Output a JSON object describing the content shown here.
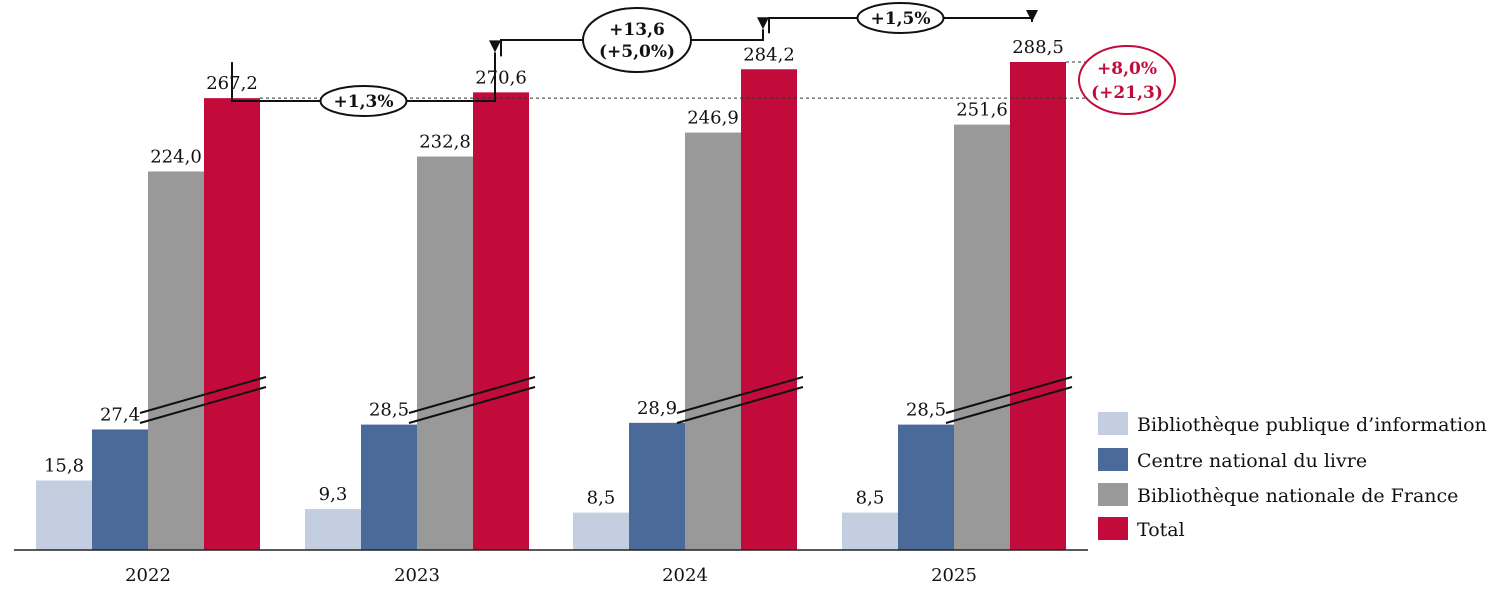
{
  "chart_data": {
    "type": "bar",
    "categories": [
      "2022",
      "2023",
      "2024",
      "2025"
    ],
    "series": [
      {
        "name": "Bibliothèque publique d’information",
        "color": "#c3cfe0",
        "values": [
          15.8,
          9.3,
          8.5,
          8.5
        ],
        "labels": [
          "15,8",
          "9,3",
          "8,5",
          "8,5"
        ]
      },
      {
        "name": "Centre national du livre",
        "color": "#4a6a99",
        "values": [
          27.4,
          28.5,
          28.9,
          28.5
        ],
        "labels": [
          "27,4",
          "28,5",
          "28,9",
          "28,5"
        ]
      },
      {
        "name": "Bibliothèque nationale de France",
        "color": "#999999",
        "values": [
          224.0,
          232.8,
          246.9,
          251.6
        ],
        "labels": [
          "224,0",
          "232,8",
          "246,9",
          "251,6"
        ]
      },
      {
        "name": "Total",
        "color": "#c20b3b",
        "values": [
          267.2,
          270.6,
          284.2,
          288.5
        ],
        "labels": [
          "267,2",
          "270,6",
          "284,2",
          "288,5"
        ]
      }
    ],
    "axis_break": true,
    "legend_position": "bottom-right",
    "annotations": [
      {
        "from": "2022",
        "to": "2023",
        "lines": [
          "+1,3%"
        ]
      },
      {
        "from": "2023",
        "to": "2024",
        "lines": [
          "+13,6",
          "(+5,0%)"
        ]
      },
      {
        "from": "2024",
        "to": "2025",
        "lines": [
          "+1,5%"
        ]
      }
    ],
    "total_change": {
      "from": "2022",
      "to": "2025",
      "lines": [
        "+8,0%",
        "(+21,3)"
      ],
      "color": "#c20b3b"
    }
  }
}
